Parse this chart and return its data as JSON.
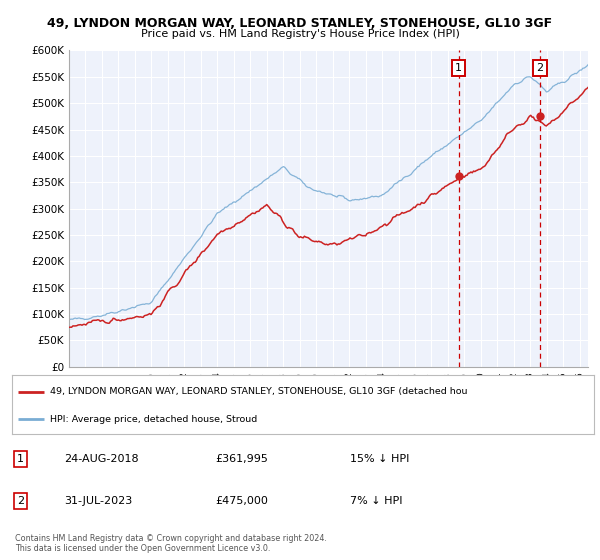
{
  "title": "49, LYNDON MORGAN WAY, LEONARD STANLEY, STONEHOUSE, GL10 3GF",
  "subtitle": "Price paid vs. HM Land Registry's House Price Index (HPI)",
  "ylim": [
    0,
    600000
  ],
  "xlim_start": 1995.0,
  "xlim_end": 2026.5,
  "yticks": [
    0,
    50000,
    100000,
    150000,
    200000,
    250000,
    300000,
    350000,
    400000,
    450000,
    500000,
    550000,
    600000
  ],
  "ytick_labels": [
    "£0",
    "£50K",
    "£100K",
    "£150K",
    "£200K",
    "£250K",
    "£300K",
    "£350K",
    "£400K",
    "£450K",
    "£500K",
    "£550K",
    "£600K"
  ],
  "hpi_color": "#7aadd4",
  "price_color": "#cc2222",
  "point1_date": 2018.65,
  "point1_price": 361995,
  "point2_date": 2023.58,
  "point2_price": 475000,
  "vline_color": "#cc0000",
  "background_color": "#ffffff",
  "plot_bg_color": "#eef2fb",
  "grid_color": "#ffffff",
  "legend_label_red": "49, LYNDON MORGAN WAY, LEONARD STANLEY, STONEHOUSE, GL10 3GF (detached hou",
  "legend_label_blue": "HPI: Average price, detached house, Stroud",
  "note1_date": "24-AUG-2018",
  "note1_price": "£361,995",
  "note1_pct": "15% ↓ HPI",
  "note2_date": "31-JUL-2023",
  "note2_price": "£475,000",
  "note2_pct": "7% ↓ HPI",
  "footnote": "Contains HM Land Registry data © Crown copyright and database right 2024.\nThis data is licensed under the Open Government Licence v3.0."
}
